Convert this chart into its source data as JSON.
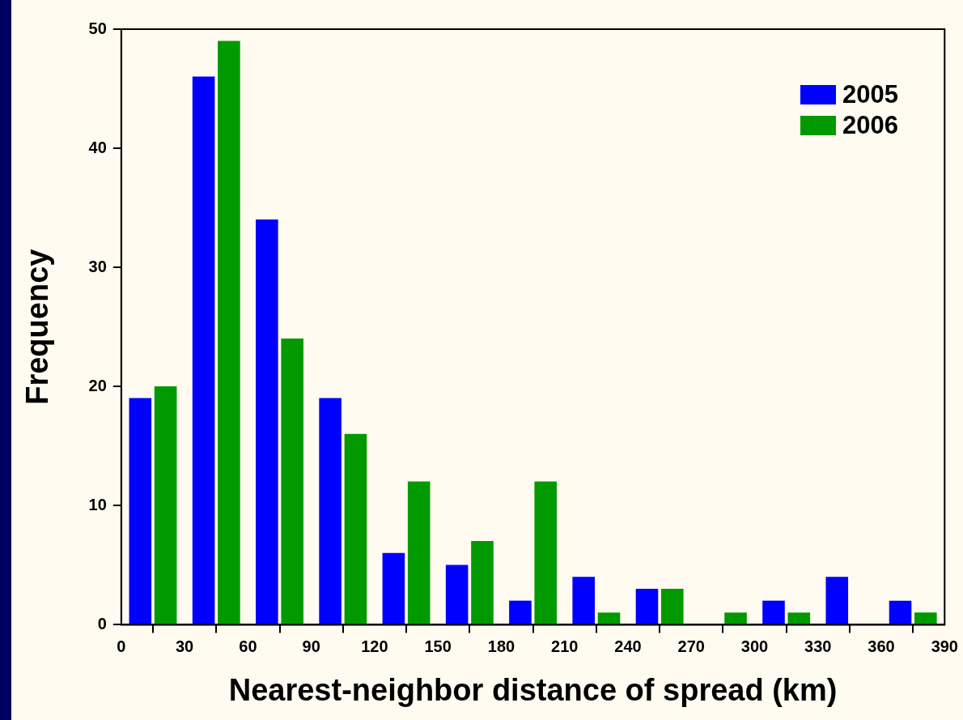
{
  "chart_data": {
    "type": "histogram",
    "xlabel": "Nearest-neighbor distance of spread (km)",
    "ylabel": "Frequency",
    "bins": [
      0,
      30,
      60,
      90,
      120,
      150,
      180,
      210,
      240,
      270,
      300,
      330,
      360,
      390
    ],
    "series": [
      {
        "name": "2005",
        "color": "#0000ff",
        "values": [
          19,
          46,
          34,
          19,
          6,
          5,
          2,
          4,
          3,
          0,
          2,
          4,
          2
        ]
      },
      {
        "name": "2006",
        "color": "#009900",
        "values": [
          20,
          49,
          24,
          16,
          12,
          7,
          12,
          1,
          3,
          1,
          1,
          0,
          1
        ]
      }
    ],
    "xlim": [
      0,
      390
    ],
    "xticks": [
      0,
      30,
      60,
      90,
      120,
      150,
      180,
      210,
      240,
      270,
      300,
      330,
      360,
      390
    ],
    "ylim": [
      0,
      50
    ],
    "yticks": [
      0,
      10,
      20,
      30,
      40,
      50
    ],
    "grid": false,
    "legend": "top right"
  }
}
